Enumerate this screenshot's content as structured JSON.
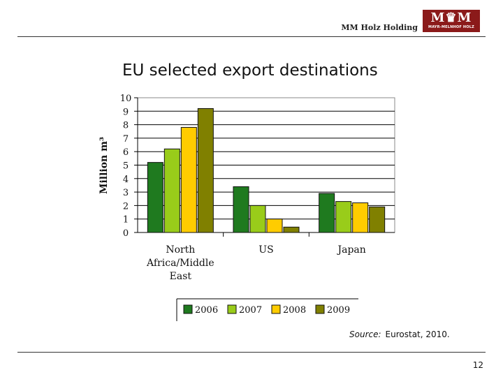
{
  "header": {
    "company": "MM Holz Holding",
    "logo_mark": "M♛M",
    "logo_sub": "MAYR-MELNHOF HOLZ"
  },
  "chart_data": {
    "type": "bar",
    "title": "EU selected export destinations",
    "ylabel": "Million m³",
    "ylim": [
      0,
      10
    ],
    "yticks": [
      "0",
      "1",
      "2",
      "3",
      "4",
      "5",
      "6",
      "7",
      "8",
      "9",
      "10"
    ],
    "categories": [
      "North Africa/Middle East",
      "US",
      "Japan"
    ],
    "category_lines": [
      [
        "North",
        "Africa/Middle",
        "East"
      ],
      [
        "US"
      ],
      [
        "Japan"
      ]
    ],
    "series": [
      {
        "name": "2006",
        "values": [
          5.2,
          3.4,
          2.9
        ],
        "color": "#1f7a1f"
      },
      {
        "name": "2007",
        "values": [
          6.2,
          2.0,
          2.3
        ],
        "color": "#99cc1a"
      },
      {
        "name": "2008",
        "values": [
          7.8,
          1.0,
          2.2
        ],
        "color": "#ffcc00"
      },
      {
        "name": "2009",
        "values": [
          9.2,
          0.4,
          1.9
        ],
        "color": "#808000"
      }
    ],
    "grid": true,
    "legend": "bottom"
  },
  "source": {
    "label": "Source:",
    "text": "Eurostat, 2010."
  },
  "footer": {
    "page_number": "12"
  }
}
